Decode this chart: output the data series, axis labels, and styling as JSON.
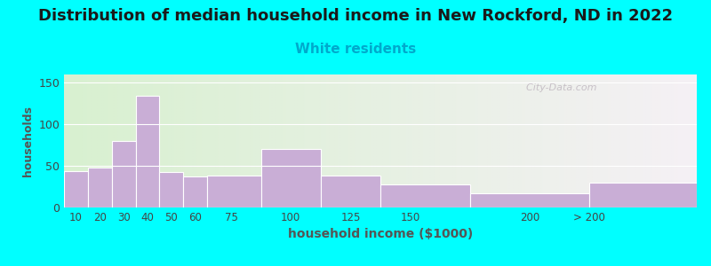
{
  "title": "Distribution of median household income in New Rockford, ND in 2022",
  "subtitle": "White residents",
  "xlabel": "household income ($1000)",
  "ylabel": "households",
  "title_fontsize": 13,
  "subtitle_fontsize": 11,
  "subtitle_color": "#00aacc",
  "bar_color": "#c9aed6",
  "bar_edgecolor": "#ffffff",
  "background_outer": "#00ffff",
  "background_inner_left": "#d8f0d0",
  "background_inner_right": "#f5f0f5",
  "ylim": [
    0,
    160
  ],
  "yticks": [
    0,
    50,
    100,
    150
  ],
  "bin_edges": [
    5,
    15,
    25,
    35,
    45,
    55,
    65,
    87.5,
    112.5,
    137.5,
    175,
    225,
    270
  ],
  "tick_positions": [
    10,
    20,
    30,
    40,
    50,
    60,
    75,
    100,
    125,
    150,
    200,
    225
  ],
  "tick_labels": [
    "10",
    "20",
    "30",
    "40",
    "50",
    "60",
    "75",
    "100",
    "125",
    "150",
    "200",
    "> 200"
  ],
  "values": [
    44,
    48,
    80,
    134,
    43,
    37,
    38,
    70,
    38,
    28,
    17,
    30
  ],
  "watermark": "  City-Data.com"
}
